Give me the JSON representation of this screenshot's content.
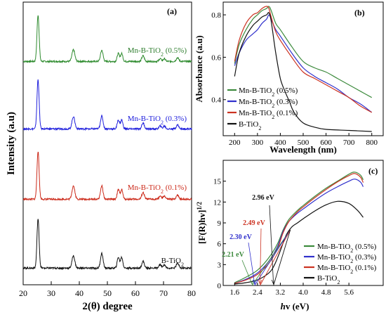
{
  "chart_data": [
    {
      "id": "a",
      "type": "line",
      "panel_label": "(a)",
      "xlabel": "2(θ) degree",
      "ylabel": "Intensity (a.u)",
      "xlim": [
        20,
        80
      ],
      "x_ticks": [
        "20",
        "30",
        "40",
        "50",
        "60",
        "70",
        "80"
      ],
      "y_ticks_shown": false,
      "peaks_deg": [
        25.3,
        37.9,
        48.0,
        53.9,
        55.1,
        62.7,
        68.8,
        70.3,
        75.0
      ],
      "series": [
        {
          "name": "Mn-B-TiO₂ (0.5%)",
          "color": "#2e8b2e",
          "peak_heights": [
            1.0,
            0.25,
            0.24,
            0.17,
            0.17,
            0.12,
            0.06,
            0.06,
            0.08
          ]
        },
        {
          "name": "Mn-B-TiO₂ (0.3%)",
          "color": "#2020dd",
          "peak_heights": [
            1.0,
            0.25,
            0.26,
            0.18,
            0.18,
            0.12,
            0.06,
            0.06,
            0.08
          ]
        },
        {
          "name": "Mn-B-TiO₂ (0.1%)",
          "color": "#cc2a1a",
          "peak_heights": [
            1.0,
            0.28,
            0.28,
            0.2,
            0.2,
            0.14,
            0.07,
            0.07,
            0.09
          ]
        },
        {
          "name": "B-TiO₂",
          "color": "#111111",
          "peak_heights": [
            1.0,
            0.25,
            0.3,
            0.22,
            0.22,
            0.14,
            0.07,
            0.07,
            0.1
          ]
        }
      ],
      "series_labels": [
        "Mn-B-TiO₂ (0.5%)",
        "Mn-B-TiO₂ (0.3%)",
        "Mn-B-TiO₂ (0.1%)",
        "B-TiO₂"
      ]
    },
    {
      "id": "b",
      "type": "line",
      "panel_label": "(b)",
      "xlabel": "Wavelength (nm)",
      "ylabel": "Absorbance (a.u)",
      "xlim": [
        150,
        850
      ],
      "ylim": [
        0.23,
        0.86
      ],
      "x_ticks": [
        200,
        300,
        400,
        500,
        600,
        700,
        800
      ],
      "y_ticks": [
        0.4,
        0.6,
        0.8
      ],
      "legend_placement": "lower-left",
      "series": [
        {
          "name": "Mn-B-TiO₂ (0.5%)",
          "color": "#3c8a3c",
          "x": [
            200,
            220,
            250,
            280,
            300,
            320,
            340,
            350,
            360,
            380,
            400,
            450,
            500,
            550,
            600,
            650,
            700,
            750,
            800
          ],
          "y": [
            0.57,
            0.66,
            0.73,
            0.78,
            0.8,
            0.82,
            0.83,
            0.84,
            0.82,
            0.76,
            0.73,
            0.65,
            0.58,
            0.55,
            0.53,
            0.5,
            0.47,
            0.44,
            0.41
          ]
        },
        {
          "name": "Mn-B-TiO₂ (0.3%)",
          "color": "#3030cc",
          "x": [
            200,
            220,
            250,
            280,
            300,
            320,
            340,
            350,
            360,
            380,
            400,
            450,
            500,
            550,
            600,
            650,
            700,
            750,
            800
          ],
          "y": [
            0.56,
            0.62,
            0.68,
            0.71,
            0.73,
            0.76,
            0.78,
            0.8,
            0.78,
            0.73,
            0.7,
            0.62,
            0.55,
            0.51,
            0.48,
            0.45,
            0.41,
            0.38,
            0.34
          ]
        },
        {
          "name": "Mn-B-TiO₂ (0.1%)",
          "color": "#cc3322",
          "x": [
            200,
            220,
            250,
            280,
            300,
            320,
            340,
            350,
            360,
            380,
            400,
            450,
            500,
            550,
            600,
            650,
            700,
            750,
            800
          ],
          "y": [
            0.58,
            0.68,
            0.76,
            0.8,
            0.81,
            0.83,
            0.84,
            0.83,
            0.79,
            0.72,
            0.68,
            0.6,
            0.53,
            0.5,
            0.47,
            0.44,
            0.41,
            0.37,
            0.34
          ]
        },
        {
          "name": "B-TiO₂",
          "color": "#111111",
          "x": [
            200,
            220,
            250,
            280,
            300,
            320,
            340,
            350,
            360,
            380,
            400,
            420,
            440,
            460,
            500,
            550,
            600,
            700,
            800
          ],
          "y": [
            0.51,
            0.62,
            0.7,
            0.75,
            0.77,
            0.79,
            0.8,
            0.81,
            0.77,
            0.62,
            0.5,
            0.44,
            0.39,
            0.34,
            0.29,
            0.27,
            0.26,
            0.255,
            0.25
          ]
        }
      ]
    },
    {
      "id": "c",
      "type": "line",
      "panel_label": "(c)",
      "xlabel": "hv (eV)",
      "ylabel": "[F(R)hv]¹ᐟ²",
      "xlim": [
        1.2,
        6.8
      ],
      "ylim": [
        0,
        18
      ],
      "x_ticks": [
        "1.6",
        "2.4",
        "3.2",
        "4.0",
        "4.8",
        "5.6"
      ],
      "y_ticks": [
        "0",
        "3",
        "6",
        "9",
        "12",
        "15"
      ],
      "legend_placement": "lower-right",
      "band_gaps": [
        {
          "label": "2.21 eV",
          "value": 2.21,
          "color": "#3c8a3c"
        },
        {
          "label": "2.30 eV",
          "value": 2.3,
          "color": "#3030cc"
        },
        {
          "label": "2.49 eV",
          "value": 2.49,
          "color": "#cc3322"
        },
        {
          "label": "2.96 eV",
          "value": 2.96,
          "color": "#111111"
        }
      ],
      "series": [
        {
          "name": "Mn-B-TiO₂ (0.5%)",
          "color": "#3c8a3c",
          "x": [
            1.6,
            2.0,
            2.4,
            2.8,
            3.1,
            3.3,
            3.5,
            3.8,
            4.0,
            4.4,
            4.8,
            5.2,
            5.6,
            5.8,
            6.0,
            6.1
          ],
          "y": [
            0.4,
            1.2,
            2.2,
            4.0,
            6.0,
            8.0,
            9.5,
            10.8,
            11.5,
            12.8,
            14.0,
            15.0,
            16.0,
            16.3,
            15.9,
            15.2
          ]
        },
        {
          "name": "Mn-B-TiO₂ (0.3%)",
          "color": "#3030cc",
          "x": [
            1.6,
            2.0,
            2.4,
            2.8,
            3.1,
            3.3,
            3.5,
            3.8,
            4.0,
            4.4,
            4.8,
            5.2,
            5.6,
            5.8,
            6.0,
            6.1
          ],
          "y": [
            0.3,
            0.9,
            1.8,
            3.5,
            5.6,
            7.8,
            9.2,
            10.4,
            11.0,
            12.2,
            13.3,
            14.2,
            15.0,
            15.3,
            14.9,
            14.2
          ]
        },
        {
          "name": "Mn-B-TiO₂ (0.1%)",
          "color": "#cc3322",
          "x": [
            1.6,
            2.0,
            2.4,
            2.8,
            3.1,
            3.3,
            3.5,
            3.8,
            4.0,
            4.4,
            4.8,
            5.2,
            5.6,
            5.8,
            6.0,
            6.1
          ],
          "y": [
            0.3,
            0.8,
            1.6,
            3.2,
            5.3,
            7.6,
            9.2,
            10.6,
            11.3,
            12.6,
            13.8,
            14.9,
            15.8,
            16.1,
            15.6,
            14.8
          ]
        },
        {
          "name": "B-TiO₂",
          "color": "#111111",
          "x": [
            1.6,
            2.0,
            2.4,
            2.8,
            3.0,
            3.2,
            3.4,
            3.6,
            3.8,
            4.0,
            4.4,
            4.8,
            5.2,
            5.6,
            5.9,
            6.1
          ],
          "y": [
            0.2,
            0.4,
            0.8,
            1.8,
            3.0,
            5.0,
            7.2,
            8.4,
            9.0,
            9.6,
            10.7,
            11.6,
            12.1,
            11.8,
            10.8,
            9.8
          ]
        }
      ]
    }
  ]
}
